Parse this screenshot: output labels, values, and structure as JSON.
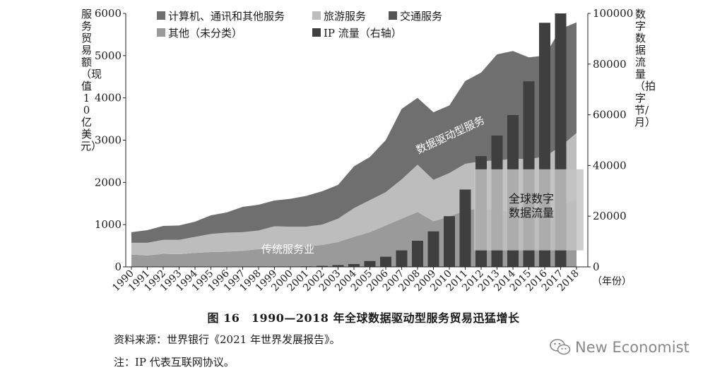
{
  "chart_data": {
    "type": "area",
    "years": [
      "1990",
      "1991",
      "1992",
      "1993",
      "1994",
      "1995",
      "1996",
      "1997",
      "1998",
      "1999",
      "2000",
      "2001",
      "2002",
      "2003",
      "2004",
      "2005",
      "2006",
      "2007",
      "2008",
      "2009",
      "2010",
      "2011",
      "2012",
      "2013",
      "2014",
      "2015",
      "2016",
      "2017",
      "2018"
    ],
    "left_axis": {
      "label": "服务贸易额（现值10亿美元）",
      "ticks": [
        0,
        1000,
        2000,
        3000,
        4000,
        5000,
        6000
      ],
      "lim": [
        0,
        6000
      ]
    },
    "right_axis": {
      "label": "数字数据流量（拍字节/月）",
      "ticks": [
        0,
        20000,
        40000,
        60000,
        80000,
        100000
      ],
      "lim": [
        0,
        100000
      ]
    },
    "x_unit_label": "（年份）",
    "area_series": [
      {
        "name": "其他（未分类）",
        "color": "#9a9a9a",
        "values": [
          290,
          270,
          310,
          300,
          330,
          350,
          360,
          380,
          420,
          430,
          450,
          480,
          520,
          590,
          710,
          820,
          980,
          1140,
          1300,
          1080,
          1190,
          1340,
          1380,
          1350,
          1290,
          1230,
          1270,
          1420,
          1600
        ]
      },
      {
        "name": "旅游服务",
        "color": "#bdbdbd",
        "values": [
          280,
          300,
          330,
          340,
          380,
          430,
          450,
          440,
          440,
          530,
          500,
          470,
          480,
          550,
          680,
          760,
          790,
          930,
          1120,
          980,
          1030,
          1100,
          1120,
          1170,
          1270,
          1320,
          1340,
          1430,
          1570
        ]
      },
      {
        "name": "计算机、通讯和其他服务",
        "color": "#6f6f6f",
        "values": [
          250,
          300,
          330,
          340,
          360,
          440,
          480,
          600,
          610,
          610,
          660,
          730,
          790,
          800,
          990,
          1020,
          1230,
          1670,
          1580,
          1600,
          1600,
          1960,
          2100,
          2510,
          2550,
          2410,
          2390,
          2780,
          2620
        ]
      }
    ],
    "bar_series": {
      "name": "IP 流量（右轴）",
      "color": "#3f3f3f",
      "values": [
        0,
        0,
        0,
        0,
        0,
        0,
        0,
        0,
        0,
        0,
        0,
        200,
        400,
        700,
        1100,
        2300,
        4000,
        6500,
        10300,
        14000,
        20000,
        30500,
        43700,
        51800,
        59900,
        73200,
        96300,
        100000,
        0
      ]
    },
    "annotations": {
      "traditional": "传统服务业",
      "digital": "数据驱动型服务",
      "global_flow": "全球数字\n数据流量"
    }
  },
  "caption": "图 16　1990—2018 年全球数据驱动型服务贸易迅猛增长",
  "source": "资料来源：世界银行《2021 年世界发展报告》。",
  "note": "注：IP 代表互联网协议。",
  "watermark": "New Economist"
}
